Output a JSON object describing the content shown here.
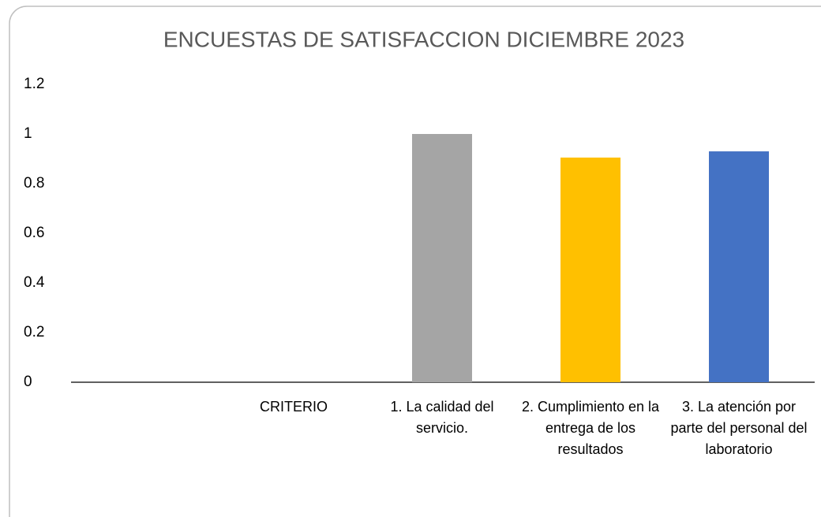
{
  "chart_data": {
    "type": "bar",
    "title": "ENCUESTAS DE SATISFACCION DICIEMBRE 2023",
    "categories": [
      null,
      "CRITERIO",
      "1. La calidad del servicio.",
      "2. Cumplimiento en la entrega de los resultados",
      "3. La atención por parte del personal del laboratorio"
    ],
    "values": [
      null,
      null,
      1,
      0.905,
      0.93
    ],
    "colors": [
      null,
      null,
      "#a5a5a5",
      "#ffc000",
      "#4472c4"
    ],
    "ylim": [
      0,
      1.2
    ],
    "yticks": [
      0,
      0.2,
      0.4,
      0.6,
      0.8,
      1,
      1.2
    ],
    "grid": false
  }
}
